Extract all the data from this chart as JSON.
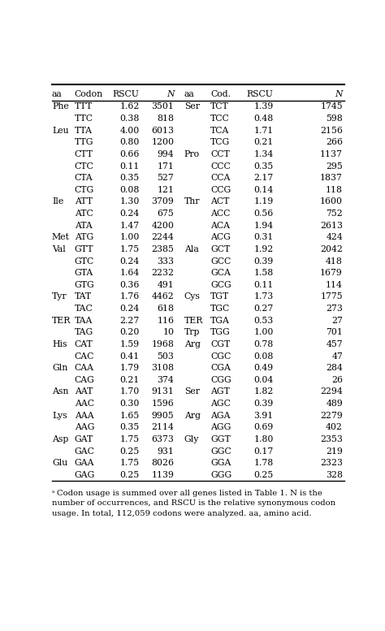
{
  "headers": [
    "aa",
    "Codon",
    "RSCU",
    "N",
    "aa",
    "Cod.",
    "RSCU",
    "N"
  ],
  "rows": [
    [
      "Phe",
      "TTT",
      "1.62",
      "3501",
      "Ser",
      "TCT",
      "1.39",
      "1745"
    ],
    [
      "",
      "TTC",
      "0.38",
      "818",
      "",
      "TCC",
      "0.48",
      "598"
    ],
    [
      "Leu",
      "TTA",
      "4.00",
      "6013",
      "",
      "TCA",
      "1.71",
      "2156"
    ],
    [
      "",
      "TTG",
      "0.80",
      "1200",
      "",
      "TCG",
      "0.21",
      "266"
    ],
    [
      "",
      "CTT",
      "0.66",
      "994",
      "Pro",
      "CCT",
      "1.34",
      "1137"
    ],
    [
      "",
      "CTC",
      "0.11",
      "171",
      "",
      "CCC",
      "0.35",
      "295"
    ],
    [
      "",
      "CTA",
      "0.35",
      "527",
      "",
      "CCA",
      "2.17",
      "1837"
    ],
    [
      "",
      "CTG",
      "0.08",
      "121",
      "",
      "CCG",
      "0.14",
      "118"
    ],
    [
      "Ile",
      "ATT",
      "1.30",
      "3709",
      "Thr",
      "ACT",
      "1.19",
      "1600"
    ],
    [
      "",
      "ATC",
      "0.24",
      "675",
      "",
      "ACC",
      "0.56",
      "752"
    ],
    [
      "",
      "ATA",
      "1.47",
      "4200",
      "",
      "ACA",
      "1.94",
      "2613"
    ],
    [
      "Met",
      "ATG",
      "1.00",
      "2244",
      "",
      "ACG",
      "0.31",
      "424"
    ],
    [
      "Val",
      "GTT",
      "1.75",
      "2385",
      "Ala",
      "GCT",
      "1.92",
      "2042"
    ],
    [
      "",
      "GTC",
      "0.24",
      "333",
      "",
      "GCC",
      "0.39",
      "418"
    ],
    [
      "",
      "GTA",
      "1.64",
      "2232",
      "",
      "GCA",
      "1.58",
      "1679"
    ],
    [
      "",
      "GTG",
      "0.36",
      "491",
      "",
      "GCG",
      "0.11",
      "114"
    ],
    [
      "Tyr",
      "TAT",
      "1.76",
      "4462",
      "Cys",
      "TGT",
      "1.73",
      "1775"
    ],
    [
      "",
      "TAC",
      "0.24",
      "618",
      "",
      "TGC",
      "0.27",
      "273"
    ],
    [
      "TER",
      "TAA",
      "2.27",
      "116",
      "TER",
      "TGA",
      "0.53",
      "27"
    ],
    [
      "",
      "TAG",
      "0.20",
      "10",
      "Trp",
      "TGG",
      "1.00",
      "701"
    ],
    [
      "His",
      "CAT",
      "1.59",
      "1968",
      "Arg",
      "CGT",
      "0.78",
      "457"
    ],
    [
      "",
      "CAC",
      "0.41",
      "503",
      "",
      "CGC",
      "0.08",
      "47"
    ],
    [
      "Gln",
      "CAA",
      "1.79",
      "3108",
      "",
      "CGA",
      "0.49",
      "284"
    ],
    [
      "",
      "CAG",
      "0.21",
      "374",
      "",
      "CGG",
      "0.04",
      "26"
    ],
    [
      "Asn",
      "AAT",
      "1.70",
      "9131",
      "Ser",
      "AGT",
      "1.82",
      "2294"
    ],
    [
      "",
      "AAC",
      "0.30",
      "1596",
      "",
      "AGC",
      "0.39",
      "489"
    ],
    [
      "Lys",
      "AAA",
      "1.65",
      "9905",
      "Arg",
      "AGA",
      "3.91",
      "2279"
    ],
    [
      "",
      "AAG",
      "0.35",
      "2114",
      "",
      "AGG",
      "0.69",
      "402"
    ],
    [
      "Asp",
      "GAT",
      "1.75",
      "6373",
      "Gly",
      "GGT",
      "1.80",
      "2353"
    ],
    [
      "",
      "GAC",
      "0.25",
      "931",
      "",
      "GGC",
      "0.17",
      "219"
    ],
    [
      "Glu",
      "GAA",
      "1.75",
      "8026",
      "",
      "GGA",
      "1.78",
      "2323"
    ],
    [
      "",
      "GAG",
      "0.25",
      "1139",
      "",
      "GGG",
      "0.25",
      "328"
    ]
  ],
  "footnote_lines": [
    "a Codon usage is summed over all genes listed in Table 1. N is the",
    "number of occurrences, and RSCU is the relative synonymous codon",
    "usage. In total, 112,059 codons were analyzed. aa, amino acid."
  ],
  "bg_color": "#ffffff",
  "text_color": "#000000",
  "line_color": "#000000",
  "font_size": 7.8,
  "header_font_size": 7.8,
  "footnote_font_size": 7.2
}
